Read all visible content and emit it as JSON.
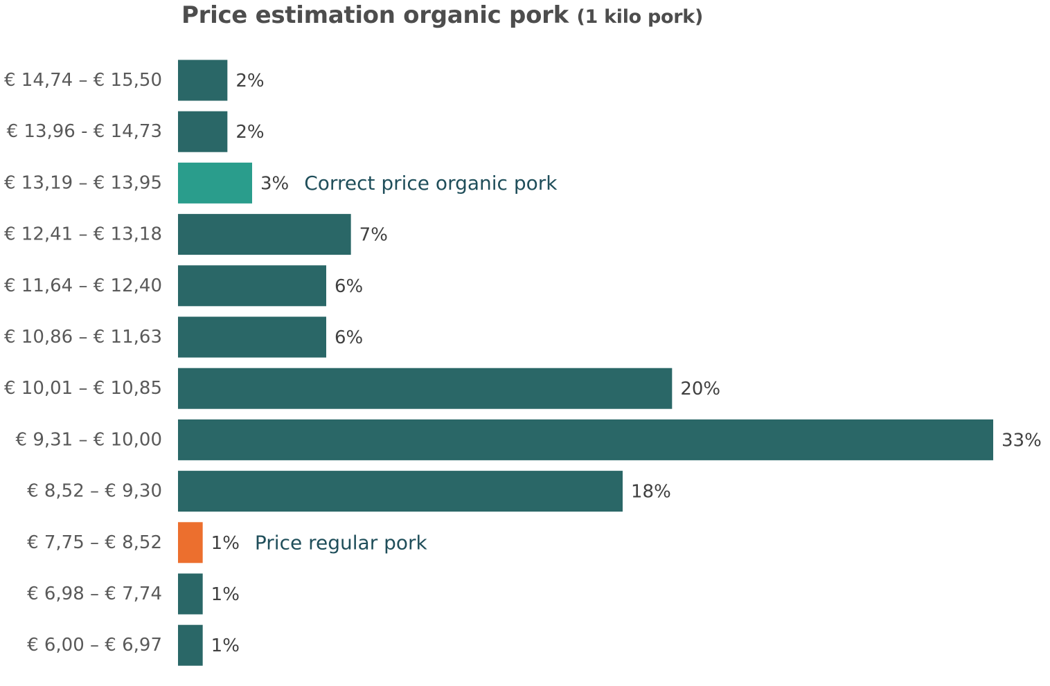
{
  "chart_data": {
    "type": "bar",
    "orientation": "horizontal",
    "title": "Price estimation organic pork",
    "title_note": "(1 kilo pork)",
    "categories": [
      "€ 14,74 – € 15,50",
      "€ 13,96 - € 14,73",
      "€ 13,19 – € 13,95",
      "€ 12,41 – € 13,18",
      "€ 11,64 – € 12,40",
      "€ 10,86 – € 11,63",
      "€ 10,01 – € 10,85",
      "€ 9,31 – € 10,00",
      "€ 8,52 – € 9,30",
      "€ 7,75 – € 8,52",
      "€ 6,98 – € 7,74",
      "€ 6,00 – € 6,97"
    ],
    "values": [
      2,
      2,
      3,
      7,
      6,
      6,
      20,
      33,
      18,
      1,
      1,
      1
    ],
    "value_labels": [
      "2%",
      "2%",
      "3%",
      "7%",
      "6%",
      "6%",
      "20%",
      "33%",
      "18%",
      "1%",
      "1%",
      "1%"
    ],
    "colors": {
      "default": "#2a6767",
      "correct_price": "#2a9d8c",
      "regular_price": "#ec6f2e"
    },
    "highlights": [
      {
        "index": 2,
        "color_key": "correct_price",
        "annotation": "Correct price organic pork"
      },
      {
        "index": 9,
        "color_key": "regular_price",
        "annotation": "Price regular pork"
      }
    ],
    "xlabel": "",
    "ylabel": "",
    "grid": false,
    "legend": false
  }
}
